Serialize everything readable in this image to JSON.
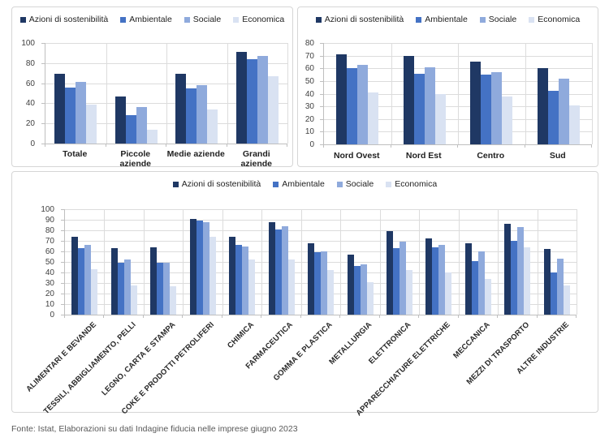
{
  "footer": {
    "source": "Fonte: Istat, Elaborazioni su dati Indagine fiducia nelle imprese giugno 2023"
  },
  "palette": {
    "azioni_di_sostenibilita": "#1F3864",
    "ambientale": "#4472C4",
    "sociale": "#8FAADC",
    "economica": "#D9E2F2",
    "gridline": "#DCDCDC",
    "axis": "#BFBFBF"
  },
  "chart_data": [
    {
      "id": "per-dimensione-aziendale",
      "type": "bar",
      "categories": [
        "Totale",
        "Piccole aziende",
        "Medie aziende",
        "Grandi aziende"
      ],
      "series": [
        {
          "name": "Azioni di sostenibilità",
          "color": "#1F3864",
          "values": [
            69,
            47,
            69,
            91
          ]
        },
        {
          "name": "Ambientale",
          "color": "#4472C4",
          "values": [
            56,
            28,
            55,
            84
          ]
        },
        {
          "name": "Sociale",
          "color": "#8FAADC",
          "values": [
            61,
            36,
            58,
            87
          ]
        },
        {
          "name": "Economica",
          "color": "#D9E2F2",
          "values": [
            39,
            14,
            34,
            67
          ]
        }
      ],
      "ylim": [
        0,
        100
      ],
      "ytick_step": 20,
      "grid": true,
      "legend_position": "top"
    },
    {
      "id": "per-area-geografica",
      "type": "bar",
      "categories": [
        "Nord Ovest",
        "Nord Est",
        "Centro",
        "Sud"
      ],
      "series": [
        {
          "name": "Azioni di sostenibilità",
          "color": "#1F3864",
          "values": [
            71,
            70,
            65,
            60
          ]
        },
        {
          "name": "Ambientale",
          "color": "#4472C4",
          "values": [
            60,
            56,
            55,
            42
          ]
        },
        {
          "name": "Sociale",
          "color": "#8FAADC",
          "values": [
            63,
            61,
            57,
            52
          ]
        },
        {
          "name": "Economica",
          "color": "#D9E2F2",
          "values": [
            41,
            40,
            38,
            31
          ]
        }
      ],
      "ylim": [
        0,
        80
      ],
      "ytick_step": 10,
      "grid": true,
      "legend_position": "top"
    },
    {
      "id": "per-settore-industriale",
      "type": "bar",
      "categories": [
        "ALIMENTARI E BEVANDE",
        "TESSILI, ABBIGLIAMENTO, PELLI",
        "LEGNO, CARTA E STAMPA",
        "COKE E PRODOTTI PETROLIFERI",
        "CHIMICA",
        "FARMACEUTICA",
        "GOMMA E PLASTICA",
        "METALLURGIA",
        "ELETTRONICA",
        "APPARECCHIATURE ELETTRICHE",
        "MECCANICA",
        "MEZZI DI TRASPORTO",
        "ALTRE INDUSTRIE"
      ],
      "series": [
        {
          "name": "Azioni di sostenibilità",
          "color": "#1F3864",
          "values": [
            74,
            63,
            64,
            91,
            74,
            88,
            68,
            57,
            79,
            72,
            68,
            86,
            62
          ]
        },
        {
          "name": "Ambientale",
          "color": "#4472C4",
          "values": [
            63,
            49,
            49,
            89,
            66,
            81,
            59,
            46,
            63,
            64,
            51,
            70,
            40
          ]
        },
        {
          "name": "Sociale",
          "color": "#8FAADC",
          "values": [
            66,
            52,
            49,
            88,
            65,
            84,
            60,
            48,
            69,
            66,
            60,
            83,
            53
          ]
        },
        {
          "name": "Economica",
          "color": "#D9E2F2",
          "values": [
            43,
            28,
            27,
            74,
            52,
            52,
            42,
            31,
            42,
            40,
            34,
            64,
            28
          ]
        }
      ],
      "ylim": [
        0,
        100
      ],
      "ytick_step": 10,
      "grid": true,
      "legend_position": "top"
    }
  ]
}
